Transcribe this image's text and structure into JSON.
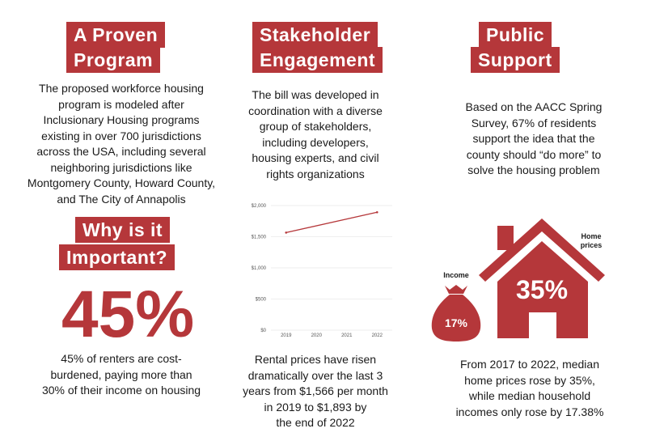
{
  "colors": {
    "accent": "#b5373a",
    "text": "#1a1a1a"
  },
  "col1": {
    "heading": [
      "A Proven",
      "Program"
    ],
    "body": [
      "The proposed workforce housing",
      "program is modeled after",
      "Inclusionary Housing programs",
      "existing in over 700 jurisdictions",
      "across the USA, including several",
      "neighboring jurisdictions like",
      "Montgomery County, Howard County,",
      "and The City of Annapolis"
    ],
    "heading2": [
      "Why is it",
      "Important?"
    ],
    "big_stat": "45%",
    "body2": [
      "45% of renters are cost-",
      "burdened, paying more than",
      "30% of their income on housing"
    ]
  },
  "col2": {
    "heading": [
      "Stakeholder",
      "Engagement"
    ],
    "body": [
      "The bill was developed in",
      "coordination with a diverse",
      "group of stakeholders,",
      "including developers,",
      "housing experts, and civil",
      "rights organizations"
    ],
    "body2": [
      "Rental prices have risen",
      "dramatically over the last 3",
      "years from $1,566 per month",
      "in 2019  to $1,893 by",
      "the end of 2022"
    ]
  },
  "col3": {
    "heading": [
      "Public",
      "Support"
    ],
    "body": [
      "Based on the AACC Spring",
      "Survey, 67% of residents",
      "support the idea that the",
      "county should “do more” to",
      "solve the housing problem"
    ],
    "income_label": "Income",
    "income_value": "17%",
    "home_label": [
      "Home",
      "prices"
    ],
    "home_value": "35%",
    "body2": [
      "From 2017 to 2022, median",
      "home prices rose by 35%,",
      "while median household",
      "incomes only rose by 17.38%"
    ]
  },
  "chart_data": {
    "type": "line",
    "categories": [
      "2019",
      "2020",
      "2021",
      "2022"
    ],
    "series": [
      {
        "name": "Rent",
        "points": [
          {
            "x": "2019",
            "y": 1566
          },
          {
            "x": "2022",
            "y": 1893
          }
        ]
      }
    ],
    "yticks": [
      "$0",
      "$500",
      "$1,000",
      "$1,500",
      "$2,000"
    ],
    "ytick_values": [
      0,
      500,
      1000,
      1500,
      2000
    ],
    "ylim": [
      0,
      2000
    ],
    "title": "",
    "xlabel": "",
    "ylabel": "",
    "grid": true
  }
}
